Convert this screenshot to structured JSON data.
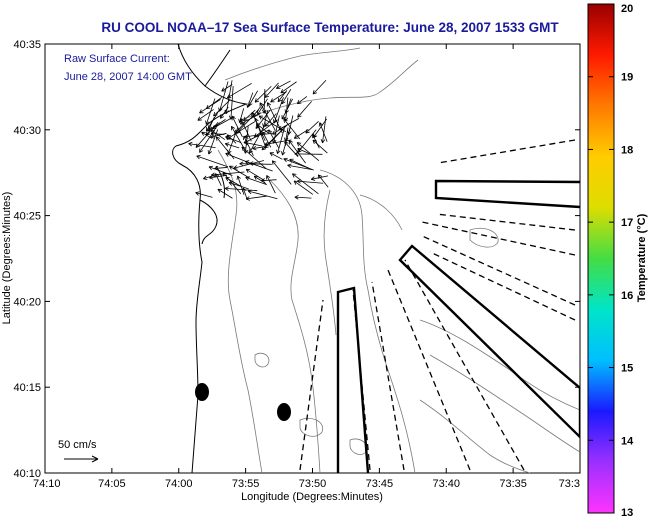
{
  "title": "RU COOL  NOAA–17  Sea Surface Temperature:  June 28, 2007 1533 GMT",
  "annotation": {
    "line1": "Raw Surface Current:",
    "line2": "June 28, 2007 14:00 GMT"
  },
  "scale_label": "50 cm/s",
  "chart_data": {
    "type": "map",
    "xlabel": "Longitude (Degrees:Minutes)",
    "ylabel": "Latitude (Degrees:Minutes)",
    "x_ticks": [
      "74:10",
      "74:05",
      "74:00",
      "73:55",
      "73:50",
      "73:45",
      "73:40",
      "73:35",
      "73:3"
    ],
    "y_ticks": [
      "40:10",
      "40:15",
      "40:20",
      "40:25",
      "40:30",
      "40:35"
    ],
    "colorbar": {
      "label": "Temperature (°C)",
      "range": [
        13,
        20
      ],
      "ticks": [
        "13",
        "14",
        "15",
        "16",
        "17",
        "18",
        "19",
        "20"
      ],
      "colors": [
        "#ff33ff",
        "#9b30ff",
        "#1a1aff",
        "#00bfff",
        "#00e5c8",
        "#44dd44",
        "#dddd00",
        "#ffcc00",
        "#ff7a00",
        "#ff1a00",
        "#990000"
      ]
    }
  }
}
